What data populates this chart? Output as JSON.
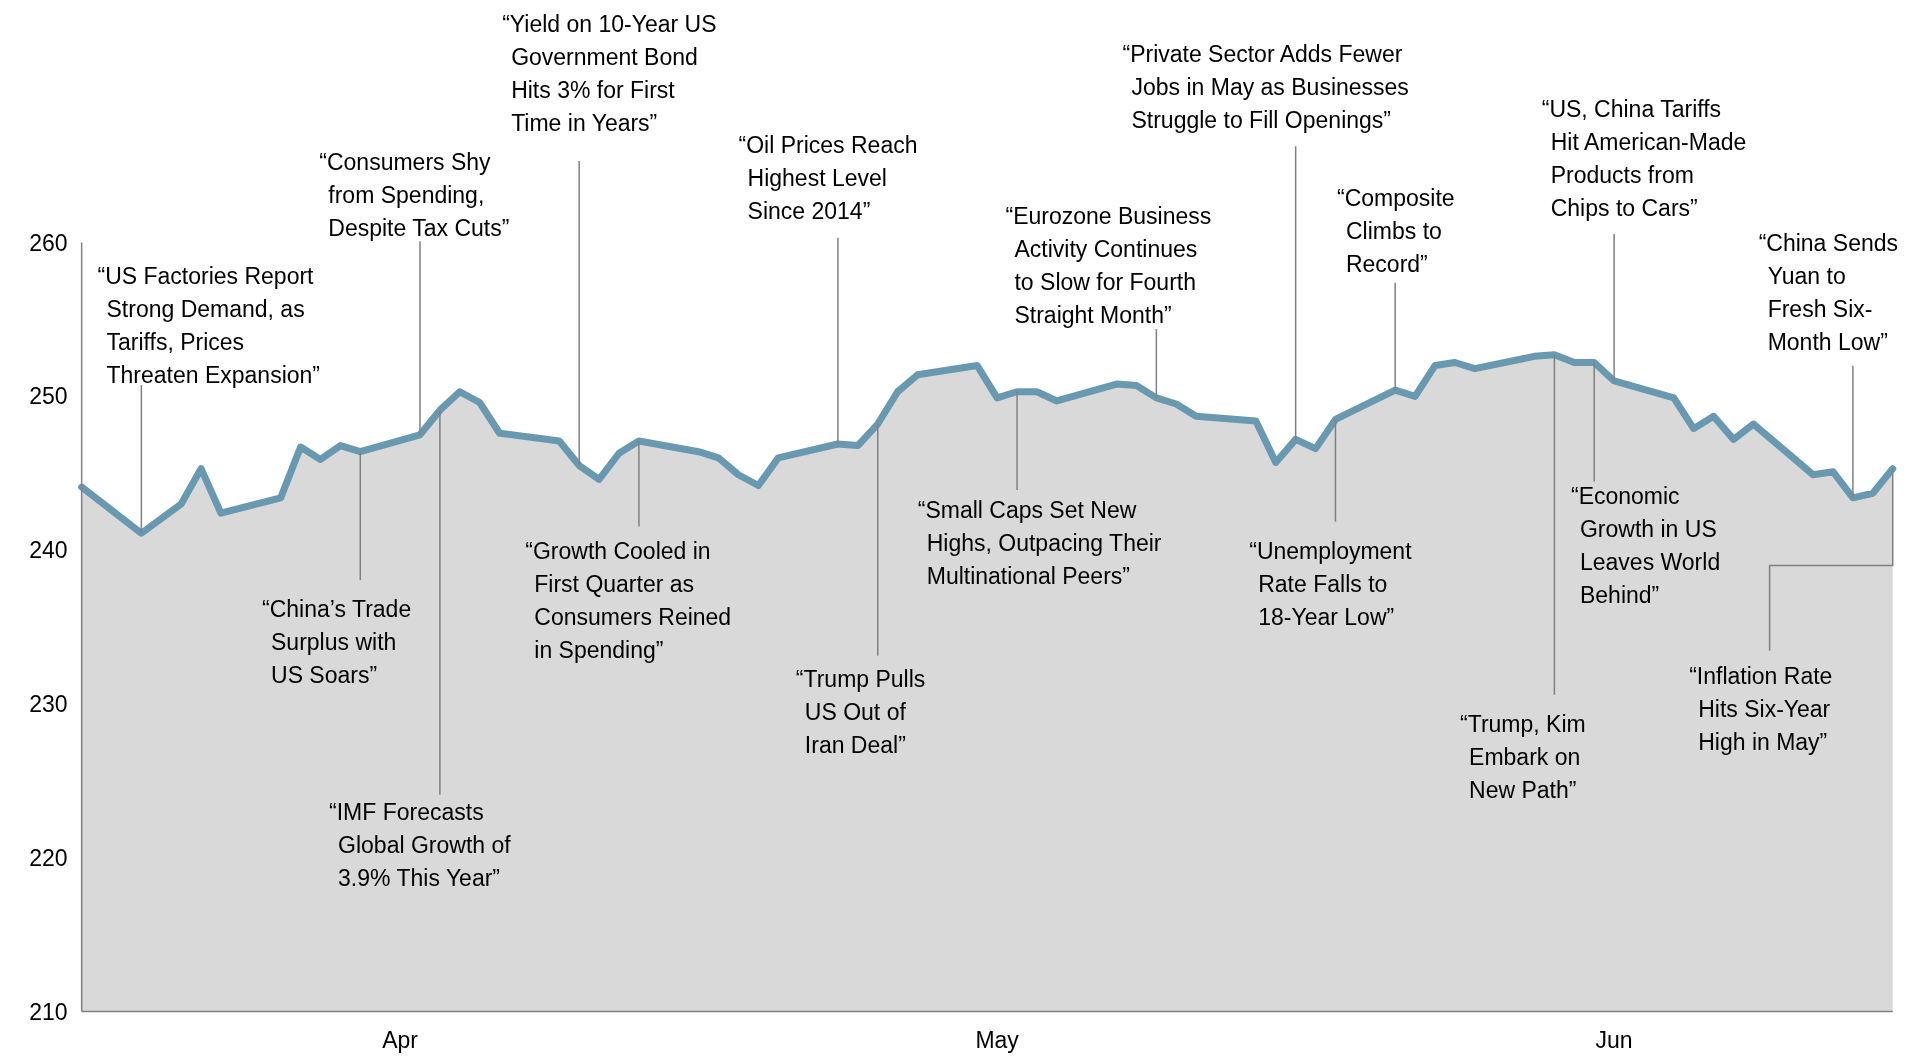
{
  "chart_data": {
    "type": "area",
    "x": [
      "--03-16",
      "--03-19",
      "--03-21",
      "--03-22",
      "--03-23",
      "--03-26",
      "--03-27",
      "--03-28",
      "--03-29",
      "--03-30",
      "--04-02",
      "--04-03",
      "--04-04",
      "--04-05",
      "--04-06",
      "--04-09",
      "--04-10",
      "--04-11",
      "--04-12",
      "--04-13",
      "--04-16",
      "--04-17",
      "--04-18",
      "--04-19",
      "--04-20",
      "--04-23",
      "--04-24",
      "--04-25",
      "--04-26",
      "--04-27",
      "--04-30",
      "--05-01",
      "--05-02",
      "--05-03",
      "--05-04",
      "--05-07",
      "--05-08",
      "--05-09",
      "--05-10",
      "--05-11",
      "--05-14",
      "--05-15",
      "--05-16",
      "--05-17",
      "--05-18",
      "--05-21",
      "--05-22",
      "--05-23",
      "--05-24",
      "--05-25",
      "--05-28",
      "--05-29",
      "--05-30",
      "--05-31",
      "--06-01",
      "--06-04",
      "--06-05",
      "--06-06",
      "--06-07",
      "--06-08",
      "--06-11",
      "--06-12",
      "--06-13",
      "--06-14",
      "--06-15"
    ],
    "series": [
      {
        "color": "#6899b0",
        "values": [
          244.1,
          241.1,
          243.0,
          245.3,
          242.4,
          243.4,
          246.7,
          245.9,
          246.8,
          246.4,
          247.5,
          249.1,
          250.3,
          249.6,
          247.6,
          247.1,
          245.5,
          244.6,
          246.3,
          247.1,
          246.4,
          246.0,
          244.9,
          244.2,
          246.0,
          246.9,
          246.8,
          248.2,
          250.3,
          251.4,
          252.0,
          249.9,
          250.3,
          250.3,
          249.7,
          250.8,
          250.7,
          249.9,
          249.5,
          248.7,
          248.4,
          245.7,
          247.2,
          246.6,
          248.5,
          250.4,
          250.0,
          252.0,
          252.2,
          251.8,
          252.6,
          252.7,
          252.2,
          252.2,
          251.0,
          249.9,
          247.9,
          248.7,
          247.2,
          248.2,
          244.9,
          245.1,
          243.4,
          243.7,
          245.3
        ]
      }
    ],
    "xlim": [
      "--03-16",
      "--06-15"
    ],
    "xticks": [
      {
        "value": "--04-01",
        "label": "Apr"
      },
      {
        "value": "--05-01",
        "label": "May"
      },
      {
        "value": "--06-01",
        "label": "Jun"
      }
    ],
    "ylim": [
      210,
      260
    ],
    "yticks": [
      210,
      220,
      230,
      240,
      250,
      260
    ],
    "annotations": [
      {
        "text": "“US Factories Report\nStrong Demand, as\nTariffs, Prices\nThreaten Expansion”",
        "x": "--03-19",
        "y": 241.1
      },
      {
        "text": "“Consumers Shy\nfrom Spending,\nDespite Tax Cuts”",
        "x": "--04-02",
        "y": 247.5
      },
      {
        "text": "“China’s Trade\nSurplus with\nUS Soars”",
        "x": "--03-30",
        "y": 246.4
      },
      {
        "text": "“IMF Forecasts\nGlobal Growth of\n3.9% This Year”",
        "x": "--04-03",
        "y": 249.1
      },
      {
        "text": "“Yield on 10-Year US\nGovernment Bond\nHits 3% for First\nTime in Years”",
        "x": "--04-10",
        "y": 245.5
      },
      {
        "text": "“Growth Cooled in\nFirst Quarter as\nConsumers Reined\nin Spending”",
        "x": "--04-13",
        "y": 247.1
      },
      {
        "text": "“Oil Prices Reach\nHighest Level\nSince 2014”",
        "x": "--04-23",
        "y": 246.9
      },
      {
        "text": "“Trump Pulls\nUS Out of\nIran Deal”",
        "x": "--04-25",
        "y": 248.2
      },
      {
        "text": "“Small Caps Set New\nHighs, Outpacing Their\nMultinational Peers”",
        "x": "--05-02",
        "y": 250.3
      },
      {
        "text": "“Eurozone Business\nActivity Continues\nto Slow for Fourth\nStraight Month”",
        "x": "--05-09",
        "y": 249.9
      },
      {
        "text": "“Private Sector Adds Fewer\nJobs in May as Businesses\nStruggle to Fill Openings”",
        "x": "--05-16",
        "y": 247.2
      },
      {
        "text": "“Unemployment\nRate Falls to\n18-Year Low”",
        "x": "--05-18",
        "y": 248.5
      },
      {
        "text": "“Composite\nClimbs to\nRecord”",
        "x": "--05-21",
        "y": 250.4
      },
      {
        "text": "“US, China Tariffs\nHit American-Made\nProducts from\nChips to Cars”",
        "x": "--06-01",
        "y": 251.0
      },
      {
        "text": "“Trump, Kim\nEmbark on\nNew Path”",
        "x": "--05-29",
        "y": 252.7
      },
      {
        "text": "“Economic\nGrowth in US\nLeaves World\nBehind”",
        "x": "--05-31",
        "y": 252.2
      },
      {
        "text": "“China Sends\nYuan to\nFresh Six-\nMonth Low”",
        "x": "--06-13",
        "y": 243.4
      },
      {
        "text": "“Inflation Rate\nHits Six-Year\nHigh in May”",
        "x": "--06-15",
        "y": 245.3
      }
    ]
  }
}
